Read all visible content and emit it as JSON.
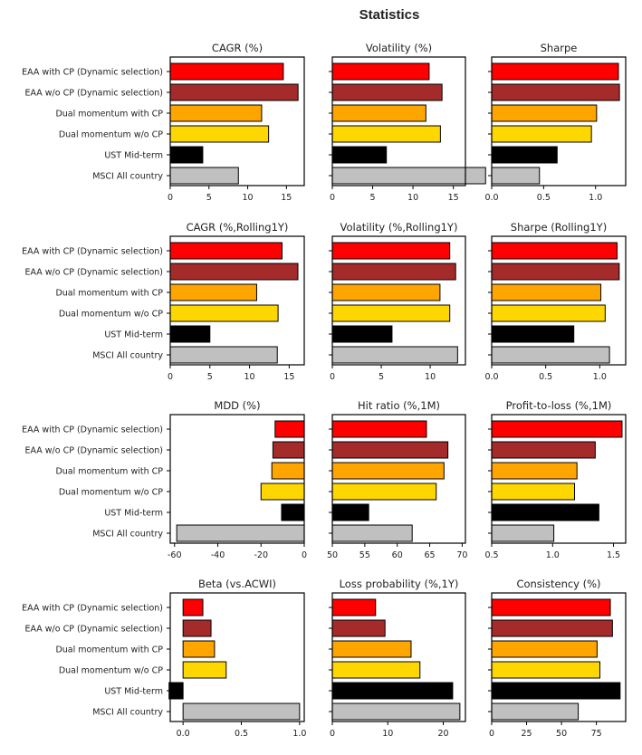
{
  "figure": {
    "title": "Statistics"
  },
  "categories": [
    "EAA with CP (Dynamic selection)",
    "EAA w/o CP (Dynamic selection)",
    "Dual momentum with CP",
    "Dual momentum w/o CP",
    "UST Mid-term",
    "MSCI All country"
  ],
  "colors": [
    "#ff0000",
    "#a52a2a",
    "#ffa500",
    "#ffd700",
    "#000000",
    "#c0c0c0"
  ],
  "chart_data": [
    {
      "type": "bar",
      "orientation": "horizontal",
      "title": "CAGR (%)",
      "xlim": [
        0,
        17.3
      ],
      "xticks": [
        0,
        5,
        10,
        15
      ],
      "xtick_labels": [
        "0",
        "5",
        "10",
        "15"
      ],
      "values": [
        14.6,
        16.5,
        11.8,
        12.7,
        4.2,
        8.8
      ]
    },
    {
      "type": "bar",
      "orientation": "horizontal",
      "title": "Volatility (%)",
      "xlim": [
        0,
        16.5
      ],
      "xticks": [
        0,
        5,
        10,
        15
      ],
      "xtick_labels": [
        "0",
        "5",
        "10",
        "15"
      ],
      "values": [
        12.0,
        13.6,
        11.6,
        13.4,
        6.7,
        19.0
      ]
    },
    {
      "type": "bar",
      "orientation": "horizontal",
      "title": "Sharpe",
      "xlim": [
        0,
        1.29
      ],
      "xticks": [
        0,
        0.5,
        1.0
      ],
      "xtick_labels": [
        "0.0",
        "0.5",
        "1.0"
      ],
      "values": [
        1.22,
        1.23,
        1.01,
        0.96,
        0.63,
        0.46
      ]
    },
    {
      "type": "bar",
      "orientation": "horizontal",
      "title": "CAGR (%,Rolling1Y)",
      "xlim": [
        0,
        16.9
      ],
      "xticks": [
        0,
        5,
        10,
        15
      ],
      "xtick_labels": [
        "0",
        "5",
        "10",
        "15"
      ],
      "values": [
        14.1,
        16.1,
        10.9,
        13.6,
        5.0,
        13.5
      ]
    },
    {
      "type": "bar",
      "orientation": "horizontal",
      "title": "Volatility (%,Rolling1Y)",
      "xlim": [
        0,
        13.6
      ],
      "xticks": [
        0,
        5,
        10
      ],
      "xtick_labels": [
        "0",
        "5",
        "10"
      ],
      "values": [
        12.0,
        12.6,
        11.0,
        12.0,
        6.1,
        12.8
      ]
    },
    {
      "type": "bar",
      "orientation": "horizontal",
      "title": "Sharpe (Rolling1Y)",
      "xlim": [
        0,
        1.24
      ],
      "xticks": [
        0,
        0.5,
        1.0
      ],
      "xtick_labels": [
        "0.0",
        "0.5",
        "1.0"
      ],
      "values": [
        1.16,
        1.18,
        1.01,
        1.05,
        0.76,
        1.09
      ]
    },
    {
      "type": "bar",
      "orientation": "horizontal",
      "title": "MDD (%)",
      "xlim": [
        -62,
        0
      ],
      "xticks": [
        -60,
        -40,
        -20,
        0
      ],
      "xtick_labels": [
        "-60",
        "-40",
        "-20",
        "0"
      ],
      "values": [
        -13.5,
        -14.5,
        -15.0,
        -20.0,
        -10.5,
        -59.0
      ]
    },
    {
      "type": "bar",
      "orientation": "horizontal",
      "title": "Hit ratio (%,1M)",
      "xlim": [
        50,
        70.5
      ],
      "xticks": [
        50,
        55,
        60,
        65,
        70
      ],
      "xtick_labels": [
        "50",
        "55",
        "60",
        "65",
        "70"
      ],
      "values": [
        64.5,
        67.8,
        67.2,
        66.0,
        55.6,
        62.3
      ]
    },
    {
      "type": "bar",
      "orientation": "horizontal",
      "title": "Profit-to-loss (%,1M)",
      "xlim": [
        0.5,
        1.6
      ],
      "xticks": [
        0.5,
        1.0,
        1.5
      ],
      "xtick_labels": [
        "0.5",
        "1.0",
        "1.5"
      ],
      "values": [
        1.57,
        1.35,
        1.2,
        1.18,
        1.38,
        1.01
      ]
    },
    {
      "type": "bar",
      "orientation": "horizontal",
      "title": "Beta (vs.ACWI)",
      "xlim": [
        -0.11,
        1.04
      ],
      "xticks": [
        0,
        0.5,
        1.0
      ],
      "xtick_labels": [
        "0.0",
        "0.5",
        "1.0"
      ],
      "values": [
        0.17,
        0.24,
        0.27,
        0.37,
        -0.12,
        1.0
      ]
    },
    {
      "type": "bar",
      "orientation": "horizontal",
      "title": "Loss probability (%,1Y)",
      "xlim": [
        0,
        24
      ],
      "xticks": [
        0,
        10,
        20
      ],
      "xtick_labels": [
        "0",
        "10",
        "20"
      ],
      "values": [
        7.8,
        9.5,
        14.2,
        15.8,
        21.7,
        23.0
      ]
    },
    {
      "type": "bar",
      "orientation": "horizontal",
      "title": "Consistency (%)",
      "xlim": [
        0,
        96
      ],
      "xticks": [
        0,
        25,
        50,
        75
      ],
      "xtick_labels": [
        "0",
        "25",
        "50",
        "75"
      ],
      "values": [
        85.0,
        86.5,
        75.5,
        77.5,
        92.0,
        62.0
      ]
    }
  ]
}
